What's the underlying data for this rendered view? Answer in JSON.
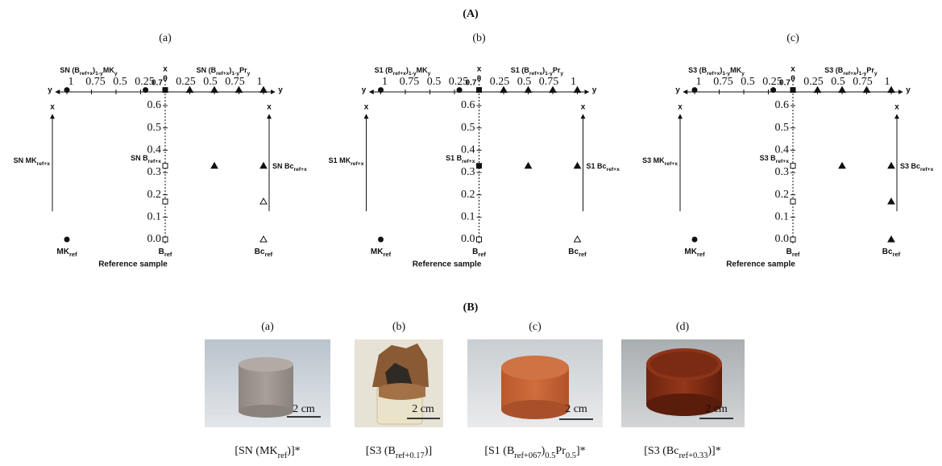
{
  "figure": {
    "section_a_label": "(A)",
    "section_b_label": "(B)",
    "axis_letters": {
      "x": "x",
      "y": "y"
    },
    "origin_label": "0",
    "top_x_label": "0.7",
    "y_ticks": [
      1,
      0.75,
      0.5,
      0.25
    ],
    "x_ticks": [
      0.6,
      0.5,
      0.4,
      0.3,
      0.2,
      0.1,
      {
        "value": 0,
        "label": "0.0"
      }
    ],
    "reference_labels": [
      [
        "MK",
        "ref"
      ],
      [
        "B",
        "ref"
      ],
      [
        "Bc",
        "ref"
      ]
    ],
    "reference_title": "Reference sample",
    "panels": [
      {
        "label": "(a)",
        "left_title": [
          "SN (B",
          "ref+x",
          ")",
          "1-y",
          "MK",
          "y"
        ],
        "right_title": [
          "SN (B",
          "ref+x",
          ")",
          "1-y",
          "Pr",
          "y"
        ],
        "left_label": [
          "SN MK",
          "ref+x"
        ],
        "center_label": [
          "SN B",
          "ref+x"
        ],
        "right_label": [
          "SN Bc",
          "ref+x"
        ],
        "points": [
          {
            "side": "MK",
            "y": 1,
            "x": 0.67,
            "shape": "circle",
            "filled": true
          },
          {
            "side": "MK",
            "y": 0.2,
            "x": 0.67,
            "shape": "circle",
            "filled": true
          },
          {
            "side": "MK",
            "y": 1,
            "x": 0,
            "shape": "circle",
            "filled": true
          },
          {
            "side": "B",
            "y": 0,
            "x": 0.67,
            "shape": "square",
            "filled": true
          },
          {
            "side": "B",
            "y": 0,
            "x": 0.33,
            "shape": "square",
            "filled": false
          },
          {
            "side": "B",
            "y": 0,
            "x": 0.17,
            "shape": "square",
            "filled": false
          },
          {
            "side": "B",
            "y": 0,
            "x": 0,
            "shape": "square",
            "filled": false
          },
          {
            "side": "Pr",
            "y": 0.25,
            "x": 0.67,
            "shape": "triangle",
            "filled": true
          },
          {
            "side": "Pr",
            "y": 0.5,
            "x": 0.67,
            "shape": "triangle",
            "filled": true
          },
          {
            "side": "Pr",
            "y": 0.75,
            "x": 0.67,
            "shape": "triangle",
            "filled": true
          },
          {
            "side": "Pr",
            "y": 1,
            "x": 0.67,
            "shape": "triangle",
            "filled": true
          },
          {
            "side": "Pr",
            "y": 0.5,
            "x": 0.33,
            "shape": "triangle",
            "filled": true
          },
          {
            "side": "Pr",
            "y": 1,
            "x": 0.33,
            "shape": "triangle",
            "filled": true
          },
          {
            "side": "Pr",
            "y": 1,
            "x": 0.17,
            "shape": "triangle",
            "filled": false
          },
          {
            "side": "Pr",
            "y": 1,
            "x": 0,
            "shape": "triangle",
            "filled": false
          }
        ]
      },
      {
        "label": "(b)",
        "left_title": [
          "S1 (B",
          "ref+x",
          ")",
          "1-y",
          "MK",
          "y"
        ],
        "right_title": [
          "S1 (B",
          "ref+x",
          ")",
          "1-y",
          "Pr",
          "y"
        ],
        "left_label": [
          "S1 MK",
          "ref+x"
        ],
        "center_label": [
          "S1 B",
          "ref+x"
        ],
        "right_label": [
          "S1 Bc",
          "ref+x"
        ],
        "points": [
          {
            "side": "MK",
            "y": 1,
            "x": 0.67,
            "shape": "circle",
            "filled": true
          },
          {
            "side": "MK",
            "y": 0.2,
            "x": 0.67,
            "shape": "circle",
            "filled": true
          },
          {
            "side": "MK",
            "y": 1,
            "x": 0,
            "shape": "circle",
            "filled": true
          },
          {
            "side": "B",
            "y": 0,
            "x": 0.67,
            "shape": "square",
            "filled": true
          },
          {
            "side": "B",
            "y": 0,
            "x": 0.33,
            "shape": "square",
            "filled": true
          },
          {
            "side": "B",
            "y": 0,
            "x": 0,
            "shape": "square",
            "filled": false
          },
          {
            "side": "Pr",
            "y": 0.25,
            "x": 0.67,
            "shape": "triangle",
            "filled": true
          },
          {
            "side": "Pr",
            "y": 0.5,
            "x": 0.67,
            "shape": "triangle",
            "filled": true
          },
          {
            "side": "Pr",
            "y": 0.75,
            "x": 0.67,
            "shape": "triangle",
            "filled": true
          },
          {
            "side": "Pr",
            "y": 1,
            "x": 0.67,
            "shape": "triangle",
            "filled": true
          },
          {
            "side": "Pr",
            "y": 0.5,
            "x": 0.33,
            "shape": "triangle",
            "filled": true
          },
          {
            "side": "Pr",
            "y": 1,
            "x": 0.33,
            "shape": "triangle",
            "filled": true
          },
          {
            "side": "Pr",
            "y": 1,
            "x": 0,
            "shape": "triangle",
            "filled": false
          }
        ]
      },
      {
        "label": "(c)",
        "left_title": [
          "S3 (B",
          "ref+x",
          ")",
          "1-y",
          "MK",
          "y"
        ],
        "right_title": [
          "S3 (B",
          "ref+x",
          ")",
          "1-y",
          "Pr",
          "y"
        ],
        "left_label": [
          "S3 MK",
          "ref+x"
        ],
        "center_label": [
          "S3 B",
          "ref+x"
        ],
        "right_label": [
          "S3 Bc",
          "ref+x"
        ],
        "points": [
          {
            "side": "MK",
            "y": 1,
            "x": 0.67,
            "shape": "circle",
            "filled": true
          },
          {
            "side": "MK",
            "y": 0.2,
            "x": 0.67,
            "shape": "circle",
            "filled": true
          },
          {
            "side": "MK",
            "y": 1,
            "x": 0,
            "shape": "circle",
            "filled": true
          },
          {
            "side": "B",
            "y": 0,
            "x": 0.67,
            "shape": "square",
            "filled": true
          },
          {
            "side": "B",
            "y": 0,
            "x": 0.33,
            "shape": "square",
            "filled": false
          },
          {
            "side": "B",
            "y": 0,
            "x": 0.17,
            "shape": "square",
            "filled": false
          },
          {
            "side": "B",
            "y": 0,
            "x": 0,
            "shape": "square",
            "filled": false
          },
          {
            "side": "Pr",
            "y": 0.25,
            "x": 0.67,
            "shape": "triangle",
            "filled": true
          },
          {
            "side": "Pr",
            "y": 0.5,
            "x": 0.67,
            "shape": "triangle",
            "filled": true
          },
          {
            "side": "Pr",
            "y": 0.75,
            "x": 0.67,
            "shape": "triangle",
            "filled": true
          },
          {
            "side": "Pr",
            "y": 1,
            "x": 0.67,
            "shape": "triangle",
            "filled": true
          },
          {
            "side": "Pr",
            "y": 0.5,
            "x": 0.33,
            "shape": "triangle",
            "filled": true
          },
          {
            "side": "Pr",
            "y": 1,
            "x": 0.33,
            "shape": "triangle",
            "filled": true
          },
          {
            "side": "Pr",
            "y": 1,
            "x": 0.17,
            "shape": "triangle",
            "filled": true
          },
          {
            "side": "Pr",
            "y": 1,
            "x": 0,
            "shape": "triangle",
            "filled": true
          }
        ]
      }
    ],
    "photos": [
      {
        "label": "(a)",
        "scale": "2 cm",
        "caption": [
          "[SN (MK",
          "ref",
          ")]*"
        ]
      },
      {
        "label": "(b)",
        "scale": "2 cm",
        "caption": [
          "[S3 (B",
          "ref+0.17",
          ")]"
        ]
      },
      {
        "label": "(c)",
        "scale": "2 cm",
        "caption": [
          "[S1 (B",
          "ref+067",
          ")",
          "0.5",
          "Pr",
          "0.5",
          "]*"
        ]
      },
      {
        "label": "(d)",
        "scale": "2 cm",
        "caption": [
          "[S3 (Bc",
          "ref+0.33",
          ")]*"
        ]
      }
    ]
  }
}
